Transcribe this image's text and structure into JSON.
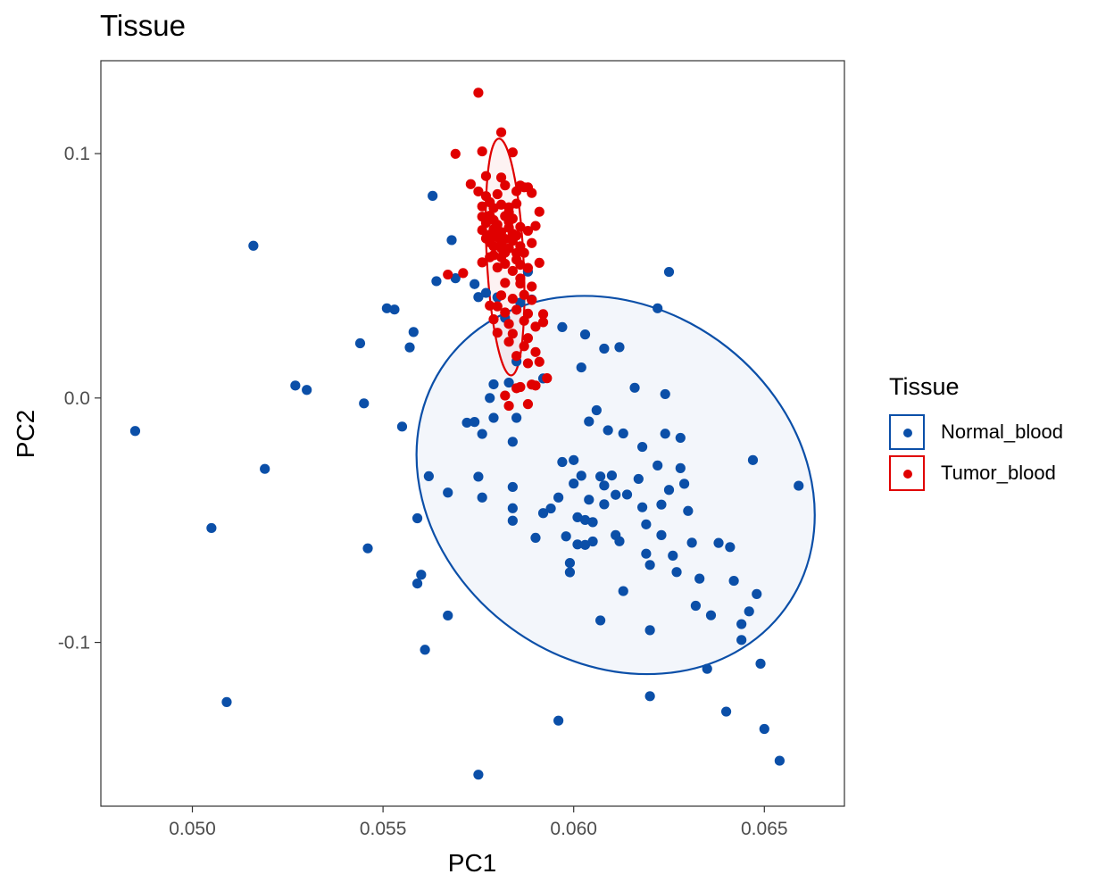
{
  "chart_data": {
    "type": "scatter",
    "title": "Tissue",
    "xlabel": "PC1",
    "ylabel": "PC2",
    "xlim": [
      0.0476,
      0.0671
    ],
    "ylim": [
      -0.167,
      0.138
    ],
    "xticks": [
      {
        "value": 0.05,
        "label": "0.050"
      },
      {
        "value": 0.055,
        "label": "0.055"
      },
      {
        "value": 0.06,
        "label": "0.060"
      },
      {
        "value": 0.065,
        "label": "0.065"
      }
    ],
    "yticks": [
      {
        "value": 0.1,
        "label": "0.1"
      },
      {
        "value": 0.0,
        "label": "0.0"
      },
      {
        "value": -0.1,
        "label": "-0.1"
      }
    ],
    "grid": false,
    "legend": {
      "title": "Tissue",
      "position": "right"
    },
    "series": [
      {
        "name": "Normal_blood",
        "color": "#0B4FA8",
        "ellipse": {
          "center": [
            0.0611,
            -0.0356
          ],
          "rx": 0.0055,
          "ry": 0.0725,
          "rotation_deg": 36
        },
        "points": [
          [
            0.0485,
            -0.0135
          ],
          [
            0.0505,
            -0.0532
          ],
          [
            0.0509,
            -0.1244
          ],
          [
            0.0516,
            0.0623
          ],
          [
            0.0519,
            -0.029
          ],
          [
            0.0527,
            0.0051
          ],
          [
            0.053,
            0.0033
          ],
          [
            0.0544,
            0.0224
          ],
          [
            0.0545,
            -0.0022
          ],
          [
            0.0546,
            -0.0615
          ],
          [
            0.0551,
            0.0367
          ],
          [
            0.0553,
            0.0362
          ],
          [
            0.0555,
            -0.0117
          ],
          [
            0.0557,
            0.0207
          ],
          [
            0.0558,
            0.027
          ],
          [
            0.0559,
            -0.0492
          ],
          [
            0.0559,
            -0.0759
          ],
          [
            0.056,
            -0.0723
          ],
          [
            0.0561,
            -0.103
          ],
          [
            0.0562,
            -0.032
          ],
          [
            0.0563,
            0.0827
          ],
          [
            0.0564,
            0.0478
          ],
          [
            0.0567,
            -0.0387
          ],
          [
            0.0567,
            -0.089
          ],
          [
            0.0568,
            0.0646
          ],
          [
            0.0569,
            0.049
          ],
          [
            0.0572,
            -0.0101
          ],
          [
            0.0574,
            -0.0098
          ],
          [
            0.0574,
            0.0466
          ],
          [
            0.0575,
            -0.0322
          ],
          [
            0.0575,
            0.0413
          ],
          [
            0.0575,
            -0.1541
          ],
          [
            0.0576,
            -0.0147
          ],
          [
            0.0576,
            -0.0407
          ],
          [
            0.0577,
            0.043
          ],
          [
            0.0578,
            0.0
          ],
          [
            0.0579,
            -0.0081
          ],
          [
            0.0579,
            0.0056
          ],
          [
            0.058,
            0.0412
          ],
          [
            0.0582,
            0.0328
          ],
          [
            0.0583,
            0.0063
          ],
          [
            0.0584,
            -0.0179
          ],
          [
            0.0584,
            -0.0364
          ],
          [
            0.0584,
            -0.0451
          ],
          [
            0.0584,
            -0.0502
          ],
          [
            0.0585,
            -0.0081
          ],
          [
            0.0585,
            0.015
          ],
          [
            0.0586,
            0.039
          ],
          [
            0.0588,
            0.0517
          ],
          [
            0.0589,
            0.0403
          ],
          [
            0.059,
            -0.0572
          ],
          [
            0.0592,
            -0.0471
          ],
          [
            0.0594,
            -0.0452
          ],
          [
            0.0596,
            -0.0407
          ],
          [
            0.0597,
            -0.0262
          ],
          [
            0.0598,
            -0.0566
          ],
          [
            0.0599,
            -0.0675
          ],
          [
            0.0599,
            -0.0713
          ],
          [
            0.06,
            -0.0254
          ],
          [
            0.06,
            -0.035
          ],
          [
            0.0601,
            -0.0488
          ],
          [
            0.0601,
            -0.0599
          ],
          [
            0.0602,
            -0.0318
          ],
          [
            0.0603,
            -0.0499
          ],
          [
            0.0603,
            -0.0601
          ],
          [
            0.0604,
            -0.0096
          ],
          [
            0.0604,
            -0.0416
          ],
          [
            0.0605,
            -0.0508
          ],
          [
            0.0605,
            -0.0587
          ],
          [
            0.0607,
            -0.0321
          ],
          [
            0.0608,
            -0.0358
          ],
          [
            0.0608,
            -0.0435
          ],
          [
            0.0609,
            -0.0132
          ],
          [
            0.061,
            -0.0317
          ],
          [
            0.0611,
            -0.0396
          ],
          [
            0.0611,
            -0.0561
          ],
          [
            0.0612,
            -0.0586
          ],
          [
            0.0613,
            -0.0145
          ],
          [
            0.0614,
            -0.0395
          ],
          [
            0.0616,
            0.0042
          ],
          [
            0.0617,
            -0.0331
          ],
          [
            0.0618,
            -0.0447
          ],
          [
            0.0619,
            -0.0517
          ],
          [
            0.0619,
            -0.0637
          ],
          [
            0.062,
            -0.0683
          ],
          [
            0.0622,
            0.0367
          ],
          [
            0.0622,
            -0.0276
          ],
          [
            0.0623,
            -0.0436
          ],
          [
            0.0623,
            -0.0561
          ],
          [
            0.0624,
            0.0016
          ],
          [
            0.0624,
            -0.0146
          ],
          [
            0.0625,
            0.0516
          ],
          [
            0.0625,
            -0.0376
          ],
          [
            0.0626,
            -0.0645
          ],
          [
            0.0627,
            -0.0712
          ],
          [
            0.0628,
            -0.0163
          ],
          [
            0.0628,
            -0.0287
          ],
          [
            0.0629,
            -0.0351
          ],
          [
            0.063,
            -0.0462
          ],
          [
            0.0631,
            -0.0592
          ],
          [
            0.0633,
            -0.0739
          ],
          [
            0.0635,
            -0.1108
          ],
          [
            0.0636,
            -0.0889
          ],
          [
            0.0638,
            -0.0593
          ],
          [
            0.064,
            -0.1283
          ],
          [
            0.0641,
            -0.061
          ],
          [
            0.0642,
            -0.0748
          ],
          [
            0.0644,
            -0.0925
          ],
          [
            0.0646,
            -0.0873
          ],
          [
            0.0647,
            -0.0254
          ],
          [
            0.0648,
            -0.0802
          ],
          [
            0.0649,
            -0.1087
          ],
          [
            0.065,
            -0.1354
          ],
          [
            0.0654,
            -0.1484
          ],
          [
            0.0659,
            -0.0359
          ],
          [
            0.0644,
            -0.099
          ],
          [
            0.0632,
            -0.085
          ],
          [
            0.0613,
            -0.079
          ],
          [
            0.0607,
            -0.091
          ],
          [
            0.0596,
            -0.132
          ],
          [
            0.0618,
            -0.02
          ],
          [
            0.062,
            -0.095
          ],
          [
            0.062,
            -0.122
          ],
          [
            0.0606,
            -0.005
          ],
          [
            0.0592,
            0.008
          ],
          [
            0.0597,
            0.029
          ],
          [
            0.0603,
            0.026
          ],
          [
            0.0608,
            0.0202
          ],
          [
            0.0612,
            0.0208
          ],
          [
            0.0602,
            0.0125
          ]
        ]
      },
      {
        "name": "Tumor_blood",
        "color": "#E00000",
        "ellipse": {
          "center": [
            0.0582,
            0.0577
          ],
          "rx": 0.00048,
          "ry": 0.0485,
          "rotation_deg": -3
        },
        "points": [
          [
            0.0575,
            0.1249
          ],
          [
            0.0569,
            0.0999
          ],
          [
            0.0581,
            0.1087
          ],
          [
            0.0576,
            0.1009
          ],
          [
            0.0584,
            0.1005
          ],
          [
            0.0573,
            0.0875
          ],
          [
            0.0577,
            0.0908
          ],
          [
            0.0581,
            0.0902
          ],
          [
            0.0588,
            0.0862
          ],
          [
            0.0575,
            0.0845
          ],
          [
            0.0577,
            0.0826
          ],
          [
            0.058,
            0.0834
          ],
          [
            0.0582,
            0.087
          ],
          [
            0.0585,
            0.0846
          ],
          [
            0.0586,
            0.0869
          ],
          [
            0.0587,
            0.0862
          ],
          [
            0.0589,
            0.0839
          ],
          [
            0.0576,
            0.0784
          ],
          [
            0.0578,
            0.0801
          ],
          [
            0.0579,
            0.0777
          ],
          [
            0.0581,
            0.0791
          ],
          [
            0.0583,
            0.076
          ],
          [
            0.0585,
            0.0795
          ],
          [
            0.0576,
            0.0742
          ],
          [
            0.0577,
            0.0716
          ],
          [
            0.0578,
            0.0746
          ],
          [
            0.0579,
            0.0728
          ],
          [
            0.058,
            0.0709
          ],
          [
            0.0582,
            0.0744
          ],
          [
            0.0583,
            0.0721
          ],
          [
            0.0584,
            0.0734
          ],
          [
            0.0586,
            0.07
          ],
          [
            0.0591,
            0.0762
          ],
          [
            0.0576,
            0.0687
          ],
          [
            0.0578,
            0.0668
          ],
          [
            0.0579,
            0.069
          ],
          [
            0.058,
            0.0658
          ],
          [
            0.0581,
            0.0679
          ],
          [
            0.0582,
            0.0651
          ],
          [
            0.0583,
            0.0697
          ],
          [
            0.0585,
            0.0665
          ],
          [
            0.0588,
            0.0684
          ],
          [
            0.0578,
            0.0637
          ],
          [
            0.0579,
            0.0621
          ],
          [
            0.0581,
            0.0631
          ],
          [
            0.0583,
            0.0613
          ],
          [
            0.0584,
            0.0643
          ],
          [
            0.0586,
            0.0621
          ],
          [
            0.0589,
            0.0634
          ],
          [
            0.0579,
            0.0584
          ],
          [
            0.0581,
            0.0576
          ],
          [
            0.0582,
            0.0595
          ],
          [
            0.0585,
            0.0566
          ],
          [
            0.0587,
            0.0594
          ],
          [
            0.058,
            0.0534
          ],
          [
            0.0582,
            0.0549
          ],
          [
            0.0584,
            0.052
          ],
          [
            0.0586,
            0.0545
          ],
          [
            0.0588,
            0.0532
          ],
          [
            0.0567,
            0.0505
          ],
          [
            0.0571,
            0.0511
          ],
          [
            0.0582,
            0.0471
          ],
          [
            0.0586,
            0.0468
          ],
          [
            0.0589,
            0.0456
          ],
          [
            0.0581,
            0.042
          ],
          [
            0.0584,
            0.0406
          ],
          [
            0.0587,
            0.0422
          ],
          [
            0.0589,
            0.0401
          ],
          [
            0.0578,
            0.0378
          ],
          [
            0.0582,
            0.035
          ],
          [
            0.0585,
            0.0361
          ],
          [
            0.0588,
            0.0345
          ],
          [
            0.0592,
            0.0343
          ],
          [
            0.0579,
            0.0322
          ],
          [
            0.0583,
            0.0303
          ],
          [
            0.0587,
            0.0316
          ],
          [
            0.059,
            0.0292
          ],
          [
            0.058,
            0.0267
          ],
          [
            0.0584,
            0.0263
          ],
          [
            0.0588,
            0.0245
          ],
          [
            0.0583,
            0.023
          ],
          [
            0.0587,
            0.0212
          ],
          [
            0.059,
            0.0188
          ],
          [
            0.0585,
            0.0172
          ],
          [
            0.0588,
            0.0142
          ],
          [
            0.0591,
            0.0148
          ],
          [
            0.0593,
            0.0081
          ],
          [
            0.0585,
            0.004
          ],
          [
            0.0589,
            0.0055
          ],
          [
            0.0582,
            0.001
          ],
          [
            0.0583,
            -0.0032
          ],
          [
            0.0588,
            -0.0025
          ],
          [
            0.0586,
            0.0045
          ],
          [
            0.059,
            0.0051
          ],
          [
            0.0578,
            0.0576
          ],
          [
            0.0584,
            0.0672
          ],
          [
            0.0576,
            0.0555
          ],
          [
            0.059,
            0.0704
          ],
          [
            0.0591,
            0.0553
          ],
          [
            0.0585,
            0.0593
          ],
          [
            0.0577,
            0.0653
          ],
          [
            0.0583,
            0.078
          ],
          [
            0.0581,
            0.0613
          ],
          [
            0.0586,
            0.0489
          ],
          [
            0.0592,
            0.031
          ],
          [
            0.058,
            0.0375
          ]
        ]
      }
    ]
  }
}
